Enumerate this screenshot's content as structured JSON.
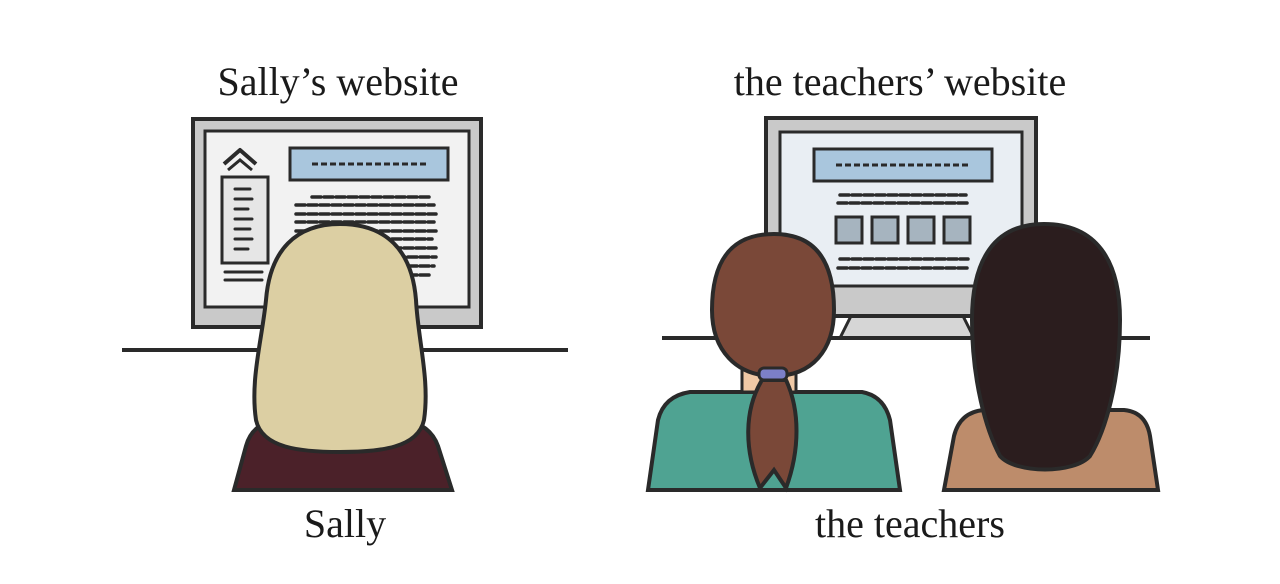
{
  "captions": {
    "sally_website": "Sally’s website",
    "teachers_website": "the teachers’ website",
    "sally": "Sally",
    "teachers": "the teachers"
  },
  "colors": {
    "outline": "#2a2a2a",
    "monitor_frame": "#c9c9c9",
    "screen_bg": "#f2f2f2",
    "teachers_screen_bg": "#e9eef3",
    "header_bar": "#a9c6dd",
    "tile": "#a6b4bf",
    "sally_hair": "#dccfa3",
    "sally_shirt": "#4b2129",
    "teacher1_hair": "#7a4838",
    "teacher1_shirt": "#4fa392",
    "teacher2_hair": "#2b1d1e",
    "teacher2_shirt": "#bd8c6b",
    "skin": "#f0c9a6",
    "scrunchie": "#7c7fc7"
  },
  "icons": {
    "sally_nav": "chevron-up-icon"
  }
}
